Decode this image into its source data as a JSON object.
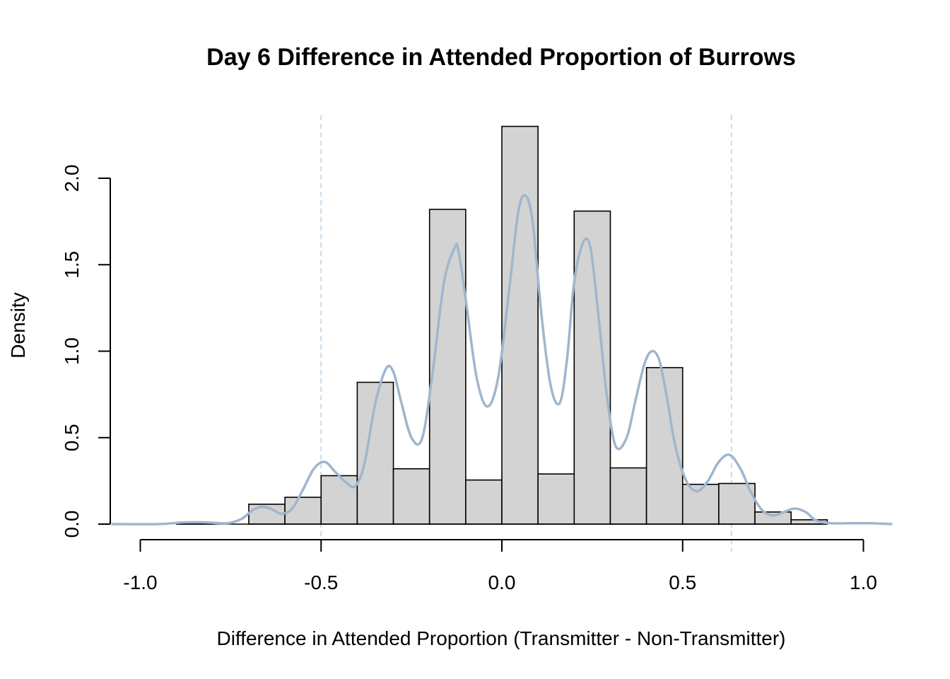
{
  "chart_data": {
    "type": "histogram",
    "title": "Day 6 Difference in Attended Proportion of Burrows",
    "xlabel": "Difference in Attended Proportion (Transmitter - Non-Transmitter)",
    "ylabel": "Density",
    "xlim": [
      -1.0,
      1.0
    ],
    "ylim": [
      0.0,
      2.0
    ],
    "x_ticks": [
      "-1.0",
      "-0.5",
      "0.0",
      "0.5",
      "1.0"
    ],
    "y_ticks": [
      "0.0",
      "0.5",
      "1.0",
      "1.5",
      "2.0"
    ],
    "colors": {
      "bars": "#d3d3d3",
      "bar_border": "#000000",
      "density": "#9fb6cd",
      "reference_lines": "#c6dbef"
    },
    "bins": [
      {
        "x0": -0.9,
        "x1": -0.8,
        "density": 0.01
      },
      {
        "x0": -0.8,
        "x1": -0.7,
        "density": 0.0
      },
      {
        "x0": -0.7,
        "x1": -0.6,
        "density": 0.115
      },
      {
        "x0": -0.6,
        "x1": -0.5,
        "density": 0.155
      },
      {
        "x0": -0.5,
        "x1": -0.4,
        "density": 0.28
      },
      {
        "x0": -0.4,
        "x1": -0.3,
        "density": 0.82
      },
      {
        "x0": -0.3,
        "x1": -0.2,
        "density": 0.32
      },
      {
        "x0": -0.2,
        "x1": -0.1,
        "density": 1.82
      },
      {
        "x0": -0.1,
        "x1": 0.0,
        "density": 0.255
      },
      {
        "x0": 0.0,
        "x1": 0.1,
        "density": 2.3
      },
      {
        "x0": 0.1,
        "x1": 0.2,
        "density": 0.29
      },
      {
        "x0": 0.2,
        "x1": 0.3,
        "density": 1.81
      },
      {
        "x0": 0.3,
        "x1": 0.4,
        "density": 0.325
      },
      {
        "x0": 0.4,
        "x1": 0.5,
        "density": 0.905
      },
      {
        "x0": 0.5,
        "x1": 0.6,
        "density": 0.23
      },
      {
        "x0": 0.6,
        "x1": 0.7,
        "density": 0.235
      },
      {
        "x0": 0.7,
        "x1": 0.8,
        "density": 0.07
      },
      {
        "x0": 0.8,
        "x1": 0.9,
        "density": 0.025
      }
    ],
    "density_curve": {
      "x": [
        -1.08,
        -0.95,
        -0.88,
        -0.82,
        -0.76,
        -0.72,
        -0.69,
        -0.665,
        -0.64,
        -0.61,
        -0.58,
        -0.55,
        -0.52,
        -0.49,
        -0.46,
        -0.43,
        -0.405,
        -0.38,
        -0.35,
        -0.32,
        -0.3,
        -0.28,
        -0.25,
        -0.22,
        -0.19,
        -0.16,
        -0.13,
        -0.12,
        -0.1,
        -0.07,
        -0.04,
        -0.01,
        0.02,
        0.045,
        0.065,
        0.085,
        0.11,
        0.135,
        0.16,
        0.18,
        0.2,
        0.225,
        0.245,
        0.265,
        0.29,
        0.315,
        0.345,
        0.37,
        0.395,
        0.415,
        0.435,
        0.455,
        0.48,
        0.51,
        0.54,
        0.57,
        0.6,
        0.63,
        0.66,
        0.69,
        0.72,
        0.75,
        0.78,
        0.81,
        0.84,
        0.87,
        0.91,
        0.96,
        1.02,
        1.08
      ],
      "y": [
        0.0,
        0.0,
        0.01,
        0.01,
        0.005,
        0.03,
        0.08,
        0.1,
        0.09,
        0.06,
        0.09,
        0.2,
        0.32,
        0.36,
        0.3,
        0.24,
        0.22,
        0.35,
        0.7,
        0.9,
        0.88,
        0.72,
        0.5,
        0.5,
        0.9,
        1.4,
        1.6,
        1.58,
        1.3,
        0.85,
        0.68,
        0.85,
        1.35,
        1.8,
        1.9,
        1.75,
        1.2,
        0.8,
        0.7,
        0.95,
        1.4,
        1.63,
        1.6,
        1.25,
        0.75,
        0.45,
        0.5,
        0.72,
        0.93,
        1.0,
        0.95,
        0.75,
        0.45,
        0.25,
        0.19,
        0.25,
        0.36,
        0.4,
        0.32,
        0.18,
        0.08,
        0.05,
        0.07,
        0.09,
        0.07,
        0.02,
        0.005,
        0.005,
        0.005,
        0.0
      ]
    },
    "reference_lines": [
      -0.5,
      0.635
    ]
  }
}
